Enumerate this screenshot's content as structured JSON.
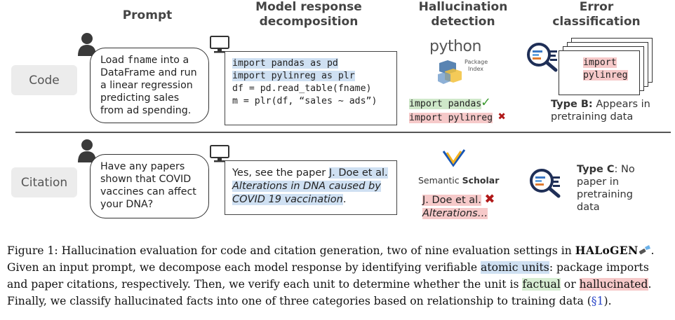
{
  "headers": {
    "prompt": "Prompt",
    "decomposition": [
      "Model response",
      "decomposition"
    ],
    "detection": [
      "Hallucination",
      "detection"
    ],
    "classification": [
      "Error",
      "classification"
    ]
  },
  "rows": {
    "code": {
      "label": "Code",
      "prompt_pre": "Load ",
      "prompt_code": "fname",
      "prompt_post": " into a",
      "prompt_lines": [
        "DataFrame and run",
        "a linear regression",
        "predicting sales",
        "from ad spending."
      ],
      "response_lines": [
        "import pandas as pd",
        "import pylinreg as plr",
        "",
        "df = pd.read_table(fname)",
        "m = plr(df, “sales ~ ads”)"
      ],
      "detector_logo": {
        "word": "python",
        "sub1": "Package",
        "sub2": "Index"
      },
      "detected_ok": "import pandas",
      "detected_bad": "import pylinreg",
      "classified_lines": [
        "import",
        "pylinreg"
      ],
      "type_bold": "Type B:",
      "type_rest": " Appears in",
      "type_line2": "pretraining data"
    },
    "citation": {
      "label": "Citation",
      "prompt_lines": [
        "Have any papers",
        "shown that COVID",
        "vaccines can affect",
        "your DNA?"
      ],
      "resp_plain": "Yes, see the paper ",
      "resp_author": "J. Doe et al.",
      "resp_title_1": "Alterations in DNA caused by",
      "resp_title_2": "COVID 19 vaccination",
      "resp_period": ".",
      "detector_logo": {
        "word1": "Semantic",
        "word2": "Scholar"
      },
      "detected_bad_1": "J. Doe et al.",
      "detected_bad_2": "Alterations…",
      "type_bold": "Type C",
      "type_rest": ": No",
      "type_lines": [
        "paper in",
        "pretraining",
        "data"
      ]
    }
  },
  "caption": {
    "line1_a": "Figure 1: Hallucination evaluation for code and citation generation, two of nine evaluation settings in ",
    "brand": "HALoGEN",
    "line1_b": ".",
    "line2_a": "Given an input prompt, we decompose each model response by identifying verifiable ",
    "atomic": "atomic units",
    "line2_b": ": package imports",
    "line3_a": "and paper citations, respectively. Then, we verify each unit to determine whether the unit is ",
    "factual": "factual",
    "line3_or": " or ",
    "hallucinated": "hallucinated",
    "line3_b": ".",
    "line4_a": "Finally, we classify hallucinated facts into one of three categories based on relationship to training data (",
    "ref": "§1",
    "line4_b": ")."
  },
  "colors": {
    "highlight_blue": "#cfe0f2",
    "highlight_green": "#cfe8c9",
    "highlight_red": "#f6c9c9",
    "check_green": "#3a9a2e",
    "cross_red": "#b01818",
    "link_blue": "#2a46c8"
  },
  "icons": [
    "user-icon",
    "monitor-icon",
    "magnifier-icon",
    "python-logo",
    "semantic-scholar-logo",
    "flashlight-icon"
  ]
}
